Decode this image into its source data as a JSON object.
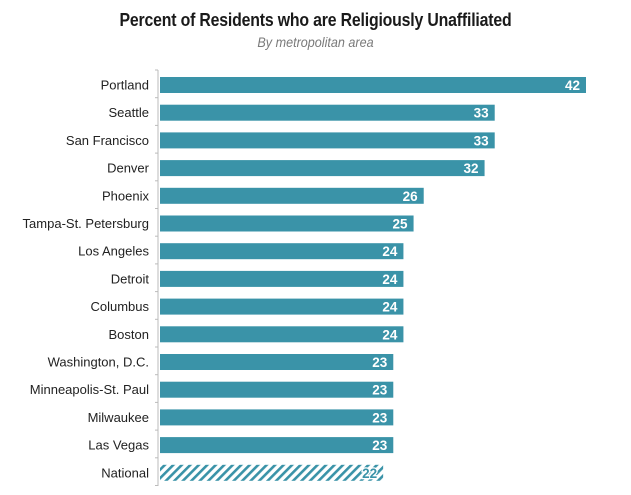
{
  "chart_data": {
    "type": "bar",
    "orientation": "horizontal",
    "title": "Percent of Residents who are Religiously Unaffiliated",
    "subtitle": "By metropolitan area",
    "xlabel": "",
    "ylabel": "",
    "xlim": [
      0,
      42
    ],
    "grid": false,
    "legend": "none",
    "bar_color": "#3a93a8",
    "categories": [
      "Portland",
      "Seattle",
      "San Francisco",
      "Denver",
      "Phoenix",
      "Tampa-St. Petersburg",
      "Los Angeles",
      "Detroit",
      "Columbus",
      "Boston",
      "Washington, D.C.",
      "Minneapolis-St. Paul",
      "Milwaukee",
      "Las Vegas",
      "National"
    ],
    "values": [
      42,
      33,
      33,
      32,
      26,
      25,
      24,
      24,
      24,
      24,
      23,
      23,
      23,
      23,
      22
    ],
    "data_labels": [
      "42",
      "33",
      "33",
      "32",
      "26",
      "25",
      "24",
      "24",
      "24",
      "24",
      "23",
      "23",
      "23",
      "23",
      "22"
    ],
    "hatched": [
      false,
      false,
      false,
      false,
      false,
      false,
      false,
      false,
      false,
      false,
      false,
      false,
      false,
      false,
      true
    ]
  }
}
